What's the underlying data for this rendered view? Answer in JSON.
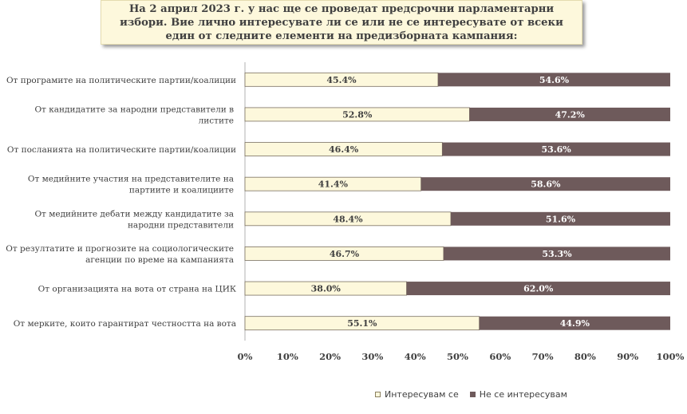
{
  "chart_data": {
    "type": "bar",
    "stacked": true,
    "orientation": "horizontal",
    "title": "На 2 април 2023 г. у нас ще се проведат предсрочни парламентарни избори. Вие лично интересувате ли се или не се интересувате от всеки един от следните елементи на предизборната кампания:",
    "categories": [
      [
        "От програмите на политическите партии/коалиции"
      ],
      [
        "От кандидатите за народни представители в",
        "листите"
      ],
      [
        "От посланията на политическите партии/коалиции"
      ],
      [
        "От медийните участия на представителите на",
        "партиите и коалициите"
      ],
      [
        "От медийните дебати между кандидатите за",
        "народни представители"
      ],
      [
        "От резултатите и прогнозите на социологическите",
        "агенции по време на кампанията"
      ],
      [
        "От организацията на вота от страна на ЦИК"
      ],
      [
        "От мерките, които гарантират честността на вота"
      ]
    ],
    "series": [
      {
        "name": "Интересувам се",
        "color": "#fdf8dc",
        "values": [
          45.4,
          52.8,
          46.4,
          41.4,
          48.4,
          46.7,
          38.0,
          55.1
        ],
        "labels": [
          "45.4%",
          "52.8%",
          "46.4%",
          "41.4%",
          "48.4%",
          "46.7%",
          "38.0%",
          "55.1%"
        ]
      },
      {
        "name": "Не се интересувам",
        "color": "#6e5a5b",
        "values": [
          54.6,
          47.2,
          53.6,
          58.6,
          51.6,
          53.3,
          62.0,
          44.9
        ],
        "labels": [
          "54.6%",
          "47.2%",
          "53.6%",
          "58.6%",
          "51.6%",
          "53.3%",
          "62.0%",
          "44.9%"
        ]
      }
    ],
    "xlim": [
      0,
      100
    ],
    "xticks": [
      "0%",
      "10%",
      "20%",
      "30%",
      "40%",
      "50%",
      "60%",
      "70%",
      "80%",
      "90%",
      "100%"
    ],
    "grid": false,
    "legend_position": "bottom"
  }
}
